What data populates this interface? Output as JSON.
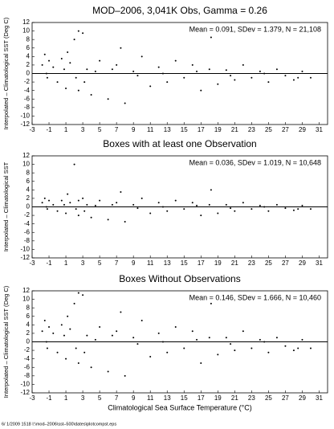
{
  "chart_data": [
    {
      "type": "scatter",
      "title": "MOD–2006, 3,041K Obs, Gamma = 0.26",
      "annotation": "Mean =  0.091, SDev =  1.379, N = 21,108",
      "ylabel": "Interpolated – Climatological SST (Deg C)",
      "color": "#000000",
      "zero_line": 0,
      "xlim": [
        -3,
        32
      ],
      "ylim": [
        -12,
        12
      ],
      "xticks": [
        -3,
        -1,
        1,
        3,
        5,
        7,
        9,
        11,
        13,
        15,
        17,
        19,
        21,
        23,
        25,
        27,
        29,
        31
      ],
      "yticks": [
        -12,
        -10,
        -8,
        -6,
        -4,
        -2,
        0,
        2,
        4,
        6,
        8,
        10,
        12
      ],
      "x": [
        -1.8,
        -1.5,
        -1.2,
        -1,
        -0.5,
        0,
        0.5,
        1,
        1.5,
        2,
        2.5,
        3,
        3.5,
        4,
        5,
        6,
        7,
        8,
        9,
        10,
        11,
        12,
        13,
        14,
        15,
        16,
        17,
        18,
        19,
        20,
        21,
        22,
        23,
        24,
        25,
        26,
        27,
        28,
        29,
        30,
        -1.3,
        0.8,
        2.2,
        4.5,
        6.5,
        9.5,
        12.5,
        16.5,
        20.5,
        24.5,
        28.5,
        1.2,
        3.2,
        7.5,
        18.2,
        2.5
      ],
      "values": [
        2,
        4.5,
        -1,
        3,
        1.5,
        -2,
        3.5,
        -3.5,
        2.5,
        8,
        -4,
        9.5,
        1,
        -5,
        3,
        -6,
        2,
        -7,
        0.5,
        4,
        -3,
        1.5,
        -2,
        3,
        -1,
        2,
        -4,
        1,
        -2.5,
        0.8,
        -1.5,
        2,
        -1,
        0.5,
        -2,
        1,
        -0.5,
        -1.5,
        0.5,
        -1,
        0,
        1,
        -1,
        0.5,
        1,
        -0.5,
        0,
        0.5,
        -0.5,
        0,
        -1,
        5,
        -2,
        6,
        8.5,
        10
      ]
    },
    {
      "type": "scatter",
      "title": "Boxes with at least one Observation",
      "annotation": "Mean =  0.036, SDev =  1.019, N = 10,648",
      "ylabel": "Interpolated – Climatological SST",
      "color": "#000000",
      "zero_line": 0,
      "xlim": [
        -3,
        32
      ],
      "ylim": [
        -12,
        12
      ],
      "xticks": [
        -3,
        -1,
        1,
        3,
        5,
        7,
        9,
        11,
        13,
        15,
        17,
        19,
        21,
        23,
        25,
        27,
        29,
        31
      ],
      "yticks": [
        -12,
        -10,
        -8,
        -6,
        -4,
        -2,
        0,
        2,
        4,
        6,
        8,
        10,
        12
      ],
      "x": [
        -1.8,
        -1.5,
        -1.2,
        -1,
        -0.5,
        0,
        0.5,
        1,
        1.5,
        2,
        2.5,
        3,
        3.5,
        4,
        5,
        6,
        7,
        8,
        9,
        10,
        11,
        12,
        13,
        14,
        15,
        16,
        17,
        18,
        19,
        20,
        21,
        22,
        23,
        24,
        25,
        26,
        27,
        28,
        29,
        30,
        -1.3,
        0.8,
        2.2,
        4.5,
        6.5,
        9.5,
        12.5,
        16.5,
        20.5,
        24.5,
        28.5,
        1.2,
        3.2,
        7.5,
        18.2,
        2.5
      ],
      "values": [
        1,
        2,
        -0.5,
        1.5,
        0.5,
        -1,
        1.5,
        -1.5,
        1,
        10,
        -2,
        2,
        0.5,
        -2.5,
        1.5,
        -3,
        1,
        -3.5,
        0.5,
        2,
        -1.5,
        1,
        -1,
        1.5,
        -0.5,
        1,
        -2,
        0.5,
        -1.5,
        0.5,
        -1,
        1,
        -0.5,
        0.3,
        -1,
        0.5,
        -0.3,
        -0.8,
        0.3,
        -0.5,
        0,
        0.5,
        -0.5,
        0.3,
        0.5,
        -0.3,
        0,
        0.3,
        -0.3,
        0,
        -0.5,
        3,
        -1,
        3.5,
        4,
        1.5
      ]
    },
    {
      "type": "scatter",
      "title": "Boxes Without Observations",
      "annotation": "Mean =  0.146, SDev =  1.666, N = 10,460",
      "ylabel": "Interpolated – Climatological SST (Deg C)",
      "xlabel": "Climatological Sea Surface Temperature (°C)",
      "color": "#000000",
      "zero_line": 0,
      "xlim": [
        -3,
        32
      ],
      "ylim": [
        -12,
        12
      ],
      "xticks": [
        -3,
        -1,
        1,
        3,
        5,
        7,
        9,
        11,
        13,
        15,
        17,
        19,
        21,
        23,
        25,
        27,
        29,
        31
      ],
      "yticks": [
        -12,
        -10,
        -8,
        -6,
        -4,
        -2,
        0,
        2,
        4,
        6,
        8,
        10,
        12
      ],
      "x": [
        -1.8,
        -1.5,
        -1.2,
        -1,
        -0.5,
        0,
        0.5,
        1,
        1.5,
        2,
        2.5,
        3,
        3.5,
        4,
        5,
        6,
        7,
        8,
        9,
        10,
        11,
        12,
        13,
        14,
        15,
        16,
        17,
        18,
        19,
        20,
        21,
        22,
        23,
        24,
        25,
        26,
        27,
        28,
        29,
        30,
        -1.3,
        0.8,
        2.2,
        4.5,
        6.5,
        9.5,
        12.5,
        16.5,
        20.5,
        24.5,
        28.5,
        1.2,
        3.2,
        7.5,
        18.2,
        2.5
      ],
      "values": [
        2.5,
        5,
        -1.5,
        3.5,
        2,
        -2.5,
        4,
        -4,
        3,
        9,
        -5,
        11,
        1.5,
        -6,
        3.5,
        -7,
        2.5,
        -8,
        1,
        5,
        -3.5,
        2,
        -2.5,
        3.5,
        -1.5,
        2.5,
        -5,
        1,
        -3,
        1,
        -2,
        2.5,
        -1.5,
        0.5,
        -2.5,
        1,
        -1,
        -2,
        0.5,
        -1.5,
        0,
        1.5,
        -1.5,
        0.5,
        1.5,
        -0.5,
        0,
        0.5,
        -0.5,
        0,
        -1.5,
        6,
        -2.5,
        7,
        9,
        11.5
      ]
    }
  ],
  "footer": "6/ 1/2009 1518 I:\\mod–2006\\sst–500\\dates\\plotcompst.eps"
}
